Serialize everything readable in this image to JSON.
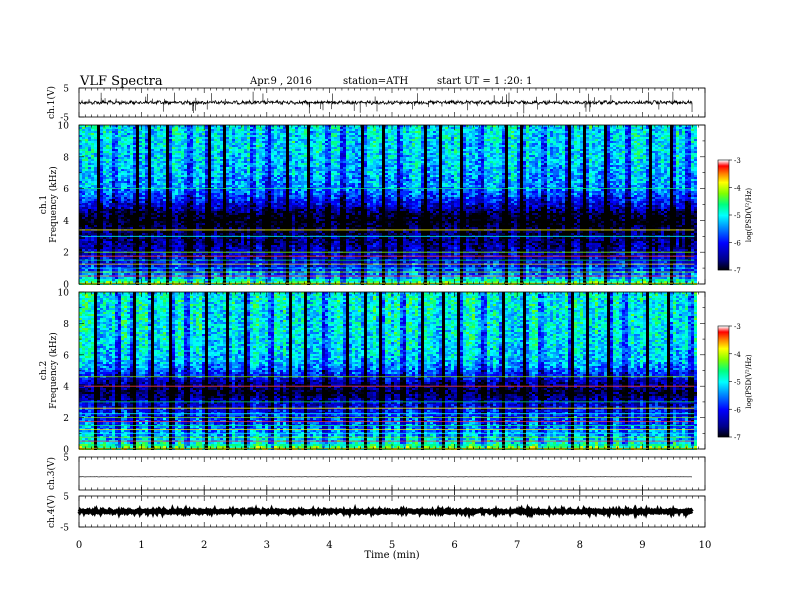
{
  "header": {
    "title": "VLF Spectra",
    "date": "Apr.9 , 2016",
    "station": "station=ATH",
    "start": "start UT = 1 :20: 1"
  },
  "colors": {
    "spectrum_scale": [
      "#000000",
      "#00008b",
      "#0000ff",
      "#0096ff",
      "#00ffff",
      "#00ff80",
      "#80ff00",
      "#ffff00",
      "#ff8000",
      "#ff0000",
      "#ffffff"
    ]
  },
  "chart_data": [
    {
      "type": "line",
      "panel": "ch1-waveform",
      "ylabel": "ch.1(V)",
      "ylim": [
        -5,
        5
      ],
      "yticks": [
        "5",
        "-5"
      ],
      "xlim": [
        0,
        10
      ],
      "x_end_min": 9.8,
      "baseline_v": 0,
      "noise_amplitude_v": 0.5
    },
    {
      "type": "heatmap",
      "panel": "ch1-spectrogram",
      "ylabel": "ch.1",
      "ylabel2": "Frequency (kHz)",
      "ylim": [
        0,
        10
      ],
      "yticks": [
        "0",
        "2",
        "4",
        "6",
        "8",
        "10"
      ],
      "xlim": [
        0,
        10
      ],
      "colorbar": {
        "label": "log(PSD(V²/Hz)",
        "ticks": [
          "-3",
          "-4",
          "-5",
          "-6",
          "-7"
        ],
        "range": [
          -7,
          -3
        ]
      },
      "profile_khz": [
        0,
        0.5,
        1.0,
        1.8,
        2.6,
        3.3,
        3.9,
        4.4,
        5.0,
        6.0,
        8.0,
        10.0
      ],
      "profile_log_psd": [
        -4.2,
        -5.3,
        -5.8,
        -6.2,
        -6.5,
        -6.7,
        -7.0,
        -6.9,
        -6.2,
        -5.4,
        -5.1,
        -5.0
      ],
      "hum_lines_khz": [
        0.05,
        0.25,
        0.5,
        0.75,
        1.0,
        1.25,
        1.5,
        1.75,
        2.0,
        3.0,
        3.4,
        6.0
      ],
      "sferic_times_min": [
        0.3,
        0.55,
        0.9,
        1.1,
        1.4,
        1.75,
        2.05,
        2.3,
        2.75,
        3.0,
        3.3,
        3.65,
        3.95,
        4.2,
        4.5,
        4.85,
        5.1,
        5.5,
        5.75,
        6.1,
        6.4,
        6.8,
        7.05,
        7.4,
        7.8,
        8.05,
        8.4,
        8.75,
        9.1,
        9.45,
        9.7
      ]
    },
    {
      "type": "heatmap",
      "panel": "ch2-spectrogram",
      "ylabel": "ch.2",
      "ylabel2": "Frequency (kHz)",
      "ylim": [
        0,
        10
      ],
      "yticks": [
        "0",
        "2",
        "4",
        "6",
        "8",
        "10"
      ],
      "xlim": [
        0,
        10
      ],
      "colorbar": {
        "label": "log(PSD(V²/Hz)",
        "ticks": [
          "-3",
          "-4",
          "-5",
          "-6",
          "-7"
        ],
        "range": [
          -7,
          -3
        ]
      },
      "profile_khz": [
        0,
        0.5,
        1.0,
        1.6,
        2.4,
        3.0,
        3.6,
        4.2,
        4.8,
        5.6,
        7.0,
        10.0
      ],
      "profile_log_psd": [
        -4.0,
        -5.0,
        -5.3,
        -5.6,
        -5.9,
        -6.2,
        -6.8,
        -6.5,
        -5.8,
        -5.2,
        -5.0,
        -4.9
      ],
      "hum_lines_khz": [
        0.05,
        0.25,
        0.5,
        0.75,
        1.0,
        1.25,
        1.5,
        1.75,
        2.0,
        2.25,
        2.6,
        3.0,
        4.0,
        4.6
      ],
      "sferic_times_min": [
        0.25,
        0.6,
        0.85,
        1.15,
        1.45,
        1.7,
        2.0,
        2.35,
        2.65,
        3.05,
        3.35,
        3.6,
        3.9,
        4.25,
        4.55,
        4.8,
        5.15,
        5.45,
        5.8,
        6.05,
        6.45,
        6.75,
        7.1,
        7.35,
        7.85,
        8.1,
        8.45,
        8.7,
        9.05,
        9.4,
        9.75
      ]
    },
    {
      "type": "line",
      "panel": "ch3-waveform",
      "ylabel": "ch.3(V)",
      "ylim": [
        -5,
        5
      ],
      "yticks": [
        "5"
      ],
      "xlim": [
        0,
        10
      ],
      "x_end_min": 9.8,
      "baseline_v": -1,
      "noise_amplitude_v": 0.02
    },
    {
      "type": "line",
      "panel": "ch4-waveform",
      "ylabel": "ch.4(V)",
      "ylim": [
        -5,
        5
      ],
      "yticks": [
        "5",
        "-5"
      ],
      "xlim": [
        0,
        10
      ],
      "x_end_min": 9.8,
      "baseline_v": 0,
      "noise_amplitude_v": 0.3
    }
  ],
  "x_axis": {
    "label": "Time (min)",
    "ticks": [
      "0",
      "1",
      "2",
      "3",
      "4",
      "5",
      "6",
      "7",
      "8",
      "9",
      "10"
    ]
  }
}
